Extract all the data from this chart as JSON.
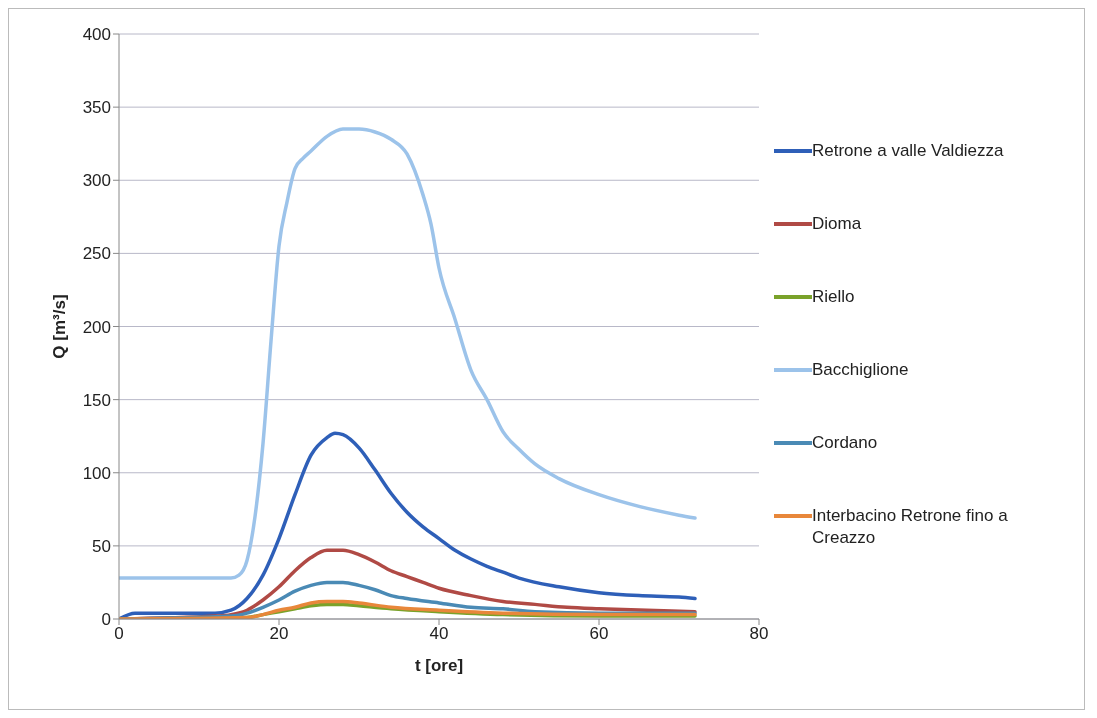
{
  "chart_data": {
    "type": "line",
    "xlabel": "t [ore]",
    "ylabel": "Q [m³/s]",
    "xlim": [
      0,
      80
    ],
    "xticks": [
      0,
      20,
      40,
      60,
      80
    ],
    "ylim": [
      0,
      400
    ],
    "yticks": [
      0,
      50,
      100,
      150,
      200,
      250,
      300,
      350,
      400
    ],
    "grid": "y",
    "legend": "right",
    "marker": "none",
    "line_style": "solid",
    "series": [
      {
        "name": "Retrone a valle Valdiezza",
        "color": "#2e5fb8",
        "x": [
          0,
          2,
          12,
          14,
          16,
          18,
          20,
          22,
          24,
          26,
          27,
          28,
          30,
          32,
          34,
          36,
          38,
          40,
          42,
          44,
          46,
          48,
          50,
          55,
          60,
          65,
          70,
          72
        ],
        "values": [
          0,
          4,
          4,
          6,
          14,
          30,
          55,
          85,
          112,
          124,
          127,
          126,
          117,
          102,
          86,
          73,
          63,
          55,
          47,
          41,
          36,
          32,
          28,
          22,
          18,
          16,
          15,
          14
        ]
      },
      {
        "name": "Dioma",
        "color": "#b04a45",
        "x": [
          0,
          12,
          14,
          16,
          18,
          20,
          22,
          24,
          26,
          28,
          30,
          32,
          34,
          36,
          38,
          40,
          44,
          48,
          52,
          56,
          60,
          66,
          72
        ],
        "values": [
          0,
          2,
          3,
          6,
          13,
          22,
          33,
          42,
          47,
          47,
          44,
          39,
          33,
          29,
          25,
          21,
          16,
          12,
          10,
          8,
          7,
          6,
          5
        ]
      },
      {
        "name": "Riello",
        "color": "#7aa22a",
        "x": [
          0,
          16,
          18,
          20,
          22,
          24,
          26,
          28,
          30,
          34,
          40,
          48,
          60,
          72
        ],
        "values": [
          0,
          1,
          3,
          5,
          7,
          9,
          10,
          10,
          9,
          7,
          5,
          3,
          2,
          2
        ]
      },
      {
        "name": "Bacchiglione",
        "color": "#9cc3ea",
        "x": [
          0,
          14,
          15,
          16,
          17,
          18,
          19,
          20,
          21,
          22,
          23,
          24,
          26,
          28,
          30,
          32,
          34,
          36,
          38,
          39,
          40,
          42,
          44,
          46,
          48,
          50,
          52,
          55,
          60,
          65,
          70,
          72
        ],
        "values": [
          28,
          28,
          30,
          40,
          70,
          120,
          190,
          255,
          285,
          308,
          315,
          320,
          330,
          335,
          335,
          333,
          328,
          318,
          290,
          270,
          240,
          205,
          170,
          150,
          128,
          116,
          106,
          96,
          85,
          77,
          71,
          69
        ]
      },
      {
        "name": "Cordano",
        "color": "#4a8ab5",
        "x": [
          0,
          14,
          16,
          18,
          20,
          22,
          24,
          26,
          28,
          30,
          32,
          34,
          36,
          40,
          44,
          48,
          52,
          60,
          72
        ],
        "values": [
          0,
          2,
          4,
          8,
          13,
          19,
          23,
          25,
          25,
          23,
          20,
          16,
          14,
          11,
          8,
          7,
          5,
          4,
          4
        ]
      },
      {
        "name": "Interbacino Retrone fino a Creazzo",
        "color": "#e8873a",
        "x": [
          0,
          16,
          18,
          20,
          22,
          24,
          26,
          28,
          30,
          34,
          40,
          48,
          60,
          72
        ],
        "values": [
          0,
          1,
          3,
          6,
          8,
          11,
          12,
          12,
          11,
          8,
          6,
          4,
          3,
          3
        ]
      }
    ]
  }
}
